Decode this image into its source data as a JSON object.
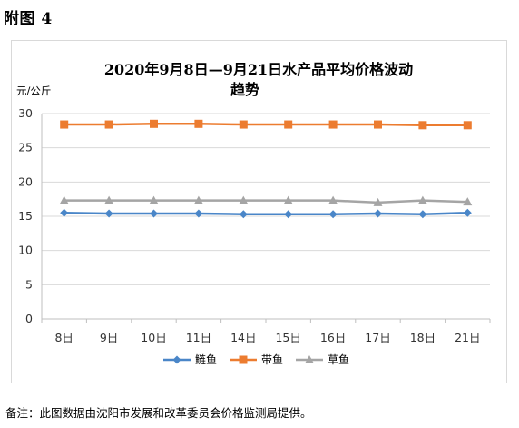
{
  "page": {
    "heading": "附图 4",
    "note": "备注：此图数据由沈阳市发展和改革委员会价格监测局提供。"
  },
  "chart_data": {
    "type": "line",
    "title_lines": [
      "2020年9月8日—9月21日水产品平均价格波动",
      "趋势"
    ],
    "ylabel": "元/公斤",
    "ylim": [
      0,
      30
    ],
    "yticks": [
      0,
      5,
      10,
      15,
      20,
      25,
      30
    ],
    "grid": true,
    "legend_position": "bottom",
    "categories": [
      "8日",
      "9日",
      "10日",
      "11日",
      "14日",
      "15日",
      "16日",
      "17日",
      "18日",
      "21日"
    ],
    "series": [
      {
        "name": "鲢鱼",
        "color": "#4a86c8",
        "marker": "diamond",
        "values": [
          15.5,
          15.4,
          15.4,
          15.4,
          15.3,
          15.3,
          15.3,
          15.4,
          15.3,
          15.5
        ]
      },
      {
        "name": "带鱼",
        "color": "#ec7c30",
        "marker": "square",
        "values": [
          28.4,
          28.4,
          28.5,
          28.5,
          28.4,
          28.4,
          28.4,
          28.4,
          28.3,
          28.3
        ]
      },
      {
        "name": "草鱼",
        "color": "#a5a5a5",
        "marker": "triangle",
        "values": [
          17.3,
          17.3,
          17.3,
          17.3,
          17.3,
          17.3,
          17.3,
          17.0,
          17.3,
          17.1
        ]
      }
    ]
  }
}
